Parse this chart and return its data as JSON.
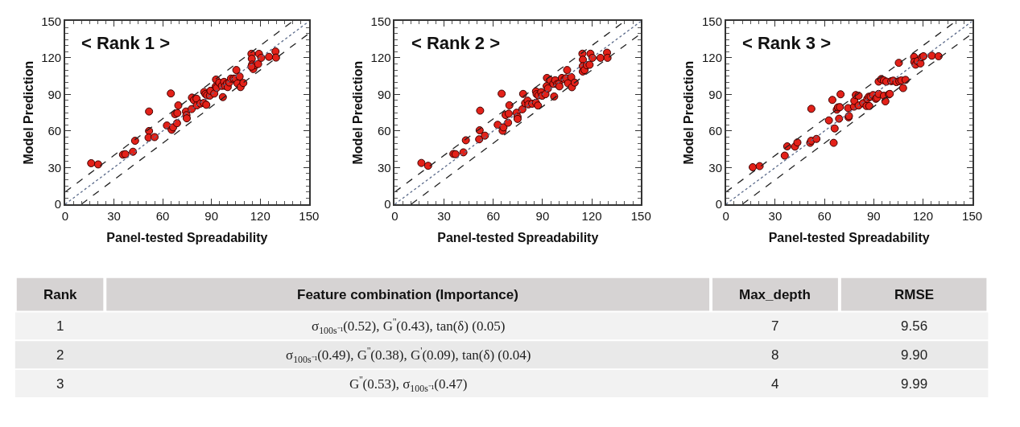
{
  "chart_data": [
    {
      "type": "scatter",
      "marker": "circle",
      "xlabel": "Panel-tested Spreadability",
      "ylabel": "Model Prediction",
      "annotations": [
        "< Rank 1 >"
      ],
      "xlim": [
        0,
        150
      ],
      "ylim": [
        0,
        150
      ],
      "xticks": [
        0,
        30,
        60,
        90,
        120,
        150
      ],
      "yticks": [
        0,
        30,
        60,
        90,
        120,
        150
      ],
      "series": [
        {
          "color": "#e32119",
          "x": [
            16,
            20.3,
            35.6,
            37,
            41.7,
            43,
            51.6,
            51.6,
            51.3,
            55,
            62.6,
            65,
            65.5,
            66.4,
            68.8,
            67.6,
            69.6,
            69,
            74.3,
            74.6,
            74.8,
            77.8,
            78,
            79.2,
            80.8,
            81,
            83.2,
            85.3,
            85.5,
            86.3,
            86.8,
            87.3,
            89,
            89.4,
            91.7,
            92.6,
            92.8,
            93.2,
            94.8,
            96.4,
            97,
            97.7,
            98.4,
            99.6,
            100,
            101,
            102,
            103.6,
            104.8,
            105.3,
            106,
            107.3,
            107.9,
            109.6,
            114.6,
            114.8,
            115,
            115.7,
            117,
            118.7,
            119.2,
            120.6,
            125.4,
            129.4,
            129.7,
            114.6
          ],
          "values": [
            33.6,
            32.6,
            40.6,
            41,
            43,
            52,
            76,
            60,
            54.6,
            55,
            64.5,
            90.8,
            61,
            63,
            66.4,
            73.8,
            81,
            74.7,
            76,
            73,
            70.4,
            78,
            87.4,
            85.3,
            86.5,
            81,
            82.5,
            83,
            92,
            90.3,
            81.5,
            89.2,
            89,
            93,
            90.7,
            96.5,
            102.2,
            95.4,
            99.6,
            97,
            87.8,
            100.3,
            97,
            99,
            96,
            99.8,
            103,
            103,
            103,
            110,
            99,
            104.7,
            96,
            99.4,
            123.3,
            119.3,
            114.5,
            110.8,
            114,
            114.9,
            123.3,
            120,
            120.8,
            125.2,
            120.2,
            112.8
          ]
        },
        {
          "type": "line",
          "marker": "none",
          "line_style": "dashed",
          "color": "#222222",
          "x": [
            0,
            140
          ],
          "values": [
            10,
            150
          ]
        },
        {
          "type": "line",
          "marker": "none",
          "line_style": "dotted",
          "color": "#5a6a8a",
          "x": [
            0,
            150
          ],
          "values": [
            0,
            150
          ]
        },
        {
          "type": "line",
          "marker": "none",
          "line_style": "dashed",
          "color": "#222222",
          "x": [
            10,
            150
          ],
          "values": [
            0,
            140
          ]
        }
      ]
    },
    {
      "type": "scatter",
      "marker": "circle",
      "xlabel": "Panel-tested Spreadability",
      "ylabel": "Model Prediction",
      "annotations": [
        "< Rank 2 >"
      ],
      "xlim": [
        0,
        150
      ],
      "ylim": [
        0,
        150
      ],
      "xticks": [
        0,
        30,
        60,
        90,
        120,
        150
      ],
      "yticks": [
        0,
        30,
        60,
        90,
        120,
        150
      ],
      "series": [
        {
          "color": "#e32119",
          "x": [
            16.2,
            20.3,
            35.7,
            37,
            41.8,
            43.3,
            52,
            51.7,
            51.4,
            54.9,
            62.7,
            65.1,
            65.7,
            66.2,
            67.5,
            69,
            69.4,
            69.8,
            74.2,
            74.8,
            74.8,
            77.7,
            78.2,
            79.4,
            80.9,
            81.4,
            83.7,
            86,
            86,
            86.4,
            87.2,
            87.5,
            89.2,
            89.8,
            91.8,
            92.5,
            92.7,
            93.3,
            94.8,
            96.6,
            97.1,
            97.7,
            98.9,
            100,
            100.3,
            101.8,
            103.5,
            104.4,
            105,
            105.5,
            107.5,
            107.9,
            109.6,
            114.3,
            114.6,
            114.5,
            114.5,
            115.6,
            117,
            118.7,
            119.2,
            120.4,
            125.3,
            129.3,
            129.6
          ],
          "values": [
            33.8,
            31.5,
            41.2,
            41,
            42.5,
            52.4,
            76.7,
            60.6,
            53.2,
            56.2,
            65.1,
            90.6,
            60.2,
            63,
            73.1,
            66.8,
            74.2,
            81.1,
            75,
            71.6,
            69.9,
            77.8,
            90.4,
            82.8,
            84.9,
            81.8,
            82.4,
            83.2,
            92.5,
            90.2,
            80.9,
            89.2,
            91.9,
            88.9,
            90.2,
            96.8,
            103.5,
            94.9,
            101.6,
            98.7,
            88.3,
            101.6,
            98.5,
            98.7,
            96.6,
            103.5,
            102.5,
            103.3,
            110,
            99.1,
            104.2,
            95.9,
            99.7,
            123.4,
            118.5,
            113.2,
            108.8,
            110,
            113.9,
            114.3,
            123.4,
            120,
            120,
            124.2,
            120
          ]
        },
        {
          "type": "line",
          "marker": "none",
          "line_style": "dashed",
          "color": "#222222",
          "x": [
            0,
            140
          ],
          "values": [
            10,
            150
          ]
        },
        {
          "type": "line",
          "marker": "none",
          "line_style": "dotted",
          "color": "#5a6a8a",
          "x": [
            0,
            150
          ],
          "values": [
            0,
            150
          ]
        },
        {
          "type": "line",
          "marker": "none",
          "line_style": "dashed",
          "color": "#222222",
          "x": [
            10,
            150
          ],
          "values": [
            0,
            140
          ]
        }
      ]
    },
    {
      "type": "scatter",
      "marker": "circle",
      "xlabel": "Panel-tested Spreadability",
      "ylabel": "Model Prediction",
      "annotations": [
        "< Rank 3 >"
      ],
      "xlim": [
        0,
        150
      ],
      "ylim": [
        0,
        150
      ],
      "xticks": [
        0,
        30,
        60,
        90,
        120,
        150
      ],
      "yticks": [
        0,
        30,
        60,
        90,
        120,
        150
      ],
      "series": [
        {
          "color": "#e32119",
          "x": [
            16.3,
            20.5,
            35.8,
            37.3,
            42,
            43.5,
            52,
            51.3,
            51.9,
            55.1,
            62.7,
            64.8,
            65.6,
            66.2,
            67.5,
            68.2,
            68.9,
            69.8,
            69.4,
            74.4,
            74.7,
            74.9,
            78,
            78.2,
            79.1,
            80.8,
            80.8,
            83.5,
            85.6,
            86.1,
            87,
            87.3,
            88.1,
            89.6,
            91.3,
            92,
            93,
            93,
            94.6,
            96.2,
            96.2,
            97.1,
            97.7,
            99.2,
            99.8,
            100.7,
            101.9,
            103.8,
            105.3,
            105.6,
            106.8,
            107.9,
            109.4,
            114.6,
            114.7,
            115.5,
            116.7,
            118.5,
            119.3,
            120.3,
            125.4,
            129.5
          ],
          "values": [
            30.3,
            31.2,
            39.8,
            47.4,
            47.2,
            50.6,
            78.2,
            50.3,
            52,
            53.5,
            68.7,
            85.5,
            50.3,
            62.1,
            77.5,
            79.4,
            70.1,
            90.1,
            79.6,
            78.8,
            71.2,
            72.3,
            80,
            84.7,
            89.5,
            88.9,
            80.9,
            82.8,
            80.5,
            86.4,
            88.1,
            80.5,
            88.1,
            89.5,
            86.4,
            87.2,
            100.5,
            90.4,
            102.6,
            101.5,
            88.9,
            84.3,
            100.5,
            90,
            90.4,
            100.9,
            101.3,
            100.1,
            115.9,
            100.9,
            101.5,
            95.2,
            101.9,
            120.7,
            116.7,
            114.4,
            117.3,
            115.4,
            120.5,
            121.3,
            121.8,
            121.3
          ]
        },
        {
          "type": "line",
          "marker": "none",
          "line_style": "dashed",
          "color": "#222222",
          "x": [
            0,
            140
          ],
          "values": [
            10,
            150
          ]
        },
        {
          "type": "line",
          "marker": "none",
          "line_style": "dotted",
          "color": "#5a6a8a",
          "x": [
            0,
            150
          ],
          "values": [
            0,
            150
          ]
        },
        {
          "type": "line",
          "marker": "none",
          "line_style": "dashed",
          "color": "#222222",
          "x": [
            10,
            150
          ],
          "values": [
            0,
            140
          ]
        }
      ]
    },
    {
      "type": "other",
      "categories": [
        "Rank",
        "Feature combination (Importance)",
        "Max_depth",
        "RMSE"
      ],
      "annotations": [
        "1",
        "σ$_{100s⁻¹}$(0.52), G$^{''}$(0.43), tan(δ) (0.05)",
        "7",
        "9.56",
        "2",
        "σ$_{100s⁻¹}$(0.49), G$^{''}$(0.38), G$^{'}$(0.09), tan(δ) (0.04)",
        "8",
        "9.90",
        "3",
        "G$^{''}$(0.53), σ$_{100s⁻¹}$(0.47)",
        "4",
        "9.99"
      ]
    }
  ]
}
